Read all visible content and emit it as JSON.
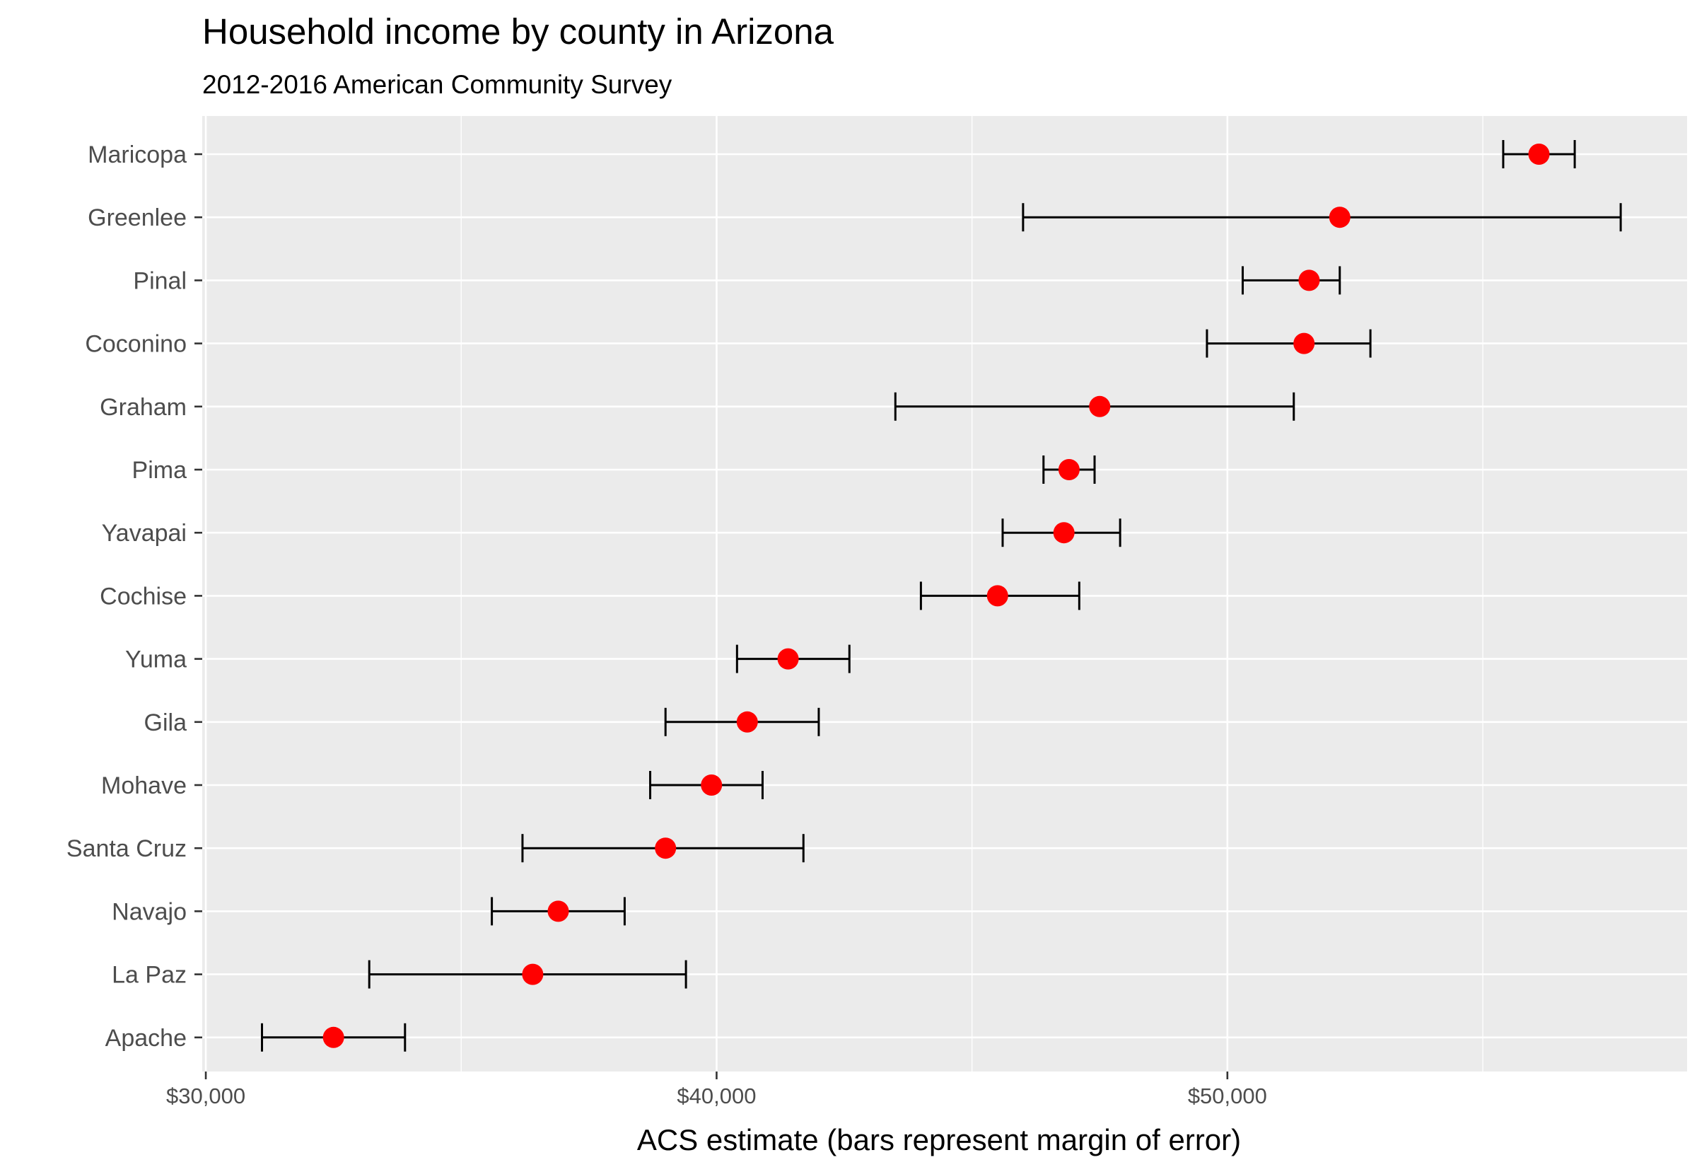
{
  "chart_data": {
    "type": "scatter",
    "title": "Household income by county in Arizona",
    "subtitle": "2012-2016 American Community Survey",
    "xlabel": "ACS estimate (bars represent margin of error)",
    "ylabel": "",
    "xlim": [
      29930,
      59000
    ],
    "x_ticks": [
      30000,
      40000,
      50000
    ],
    "x_tick_labels": [
      "$30,000",
      "$40,000",
      "$50,000"
    ],
    "grid": true,
    "panel_background": "#ebebeb",
    "point_color": "#ff0000",
    "errorbar_color": "#000000",
    "categories": [
      "Maricopa",
      "Greenlee",
      "Pinal",
      "Coconino",
      "Graham",
      "Pima",
      "Yavapai",
      "Cochise",
      "Yuma",
      "Gila",
      "Mohave",
      "Santa Cruz",
      "Navajo",
      "La Paz",
      "Apache"
    ],
    "estimate": [
      56100,
      52200,
      51600,
      51500,
      47500,
      46900,
      46800,
      45500,
      41400,
      40600,
      39900,
      39000,
      36900,
      36400,
      32500
    ],
    "lower": [
      55400,
      46000,
      50300,
      49600,
      43500,
      46400,
      45600,
      44000,
      40400,
      39000,
      38700,
      36200,
      35600,
      33200,
      31100
    ],
    "upper": [
      56800,
      57700,
      52200,
      52800,
      51300,
      47400,
      47900,
      47100,
      42600,
      42000,
      40900,
      41700,
      38200,
      39400,
      33900
    ]
  }
}
